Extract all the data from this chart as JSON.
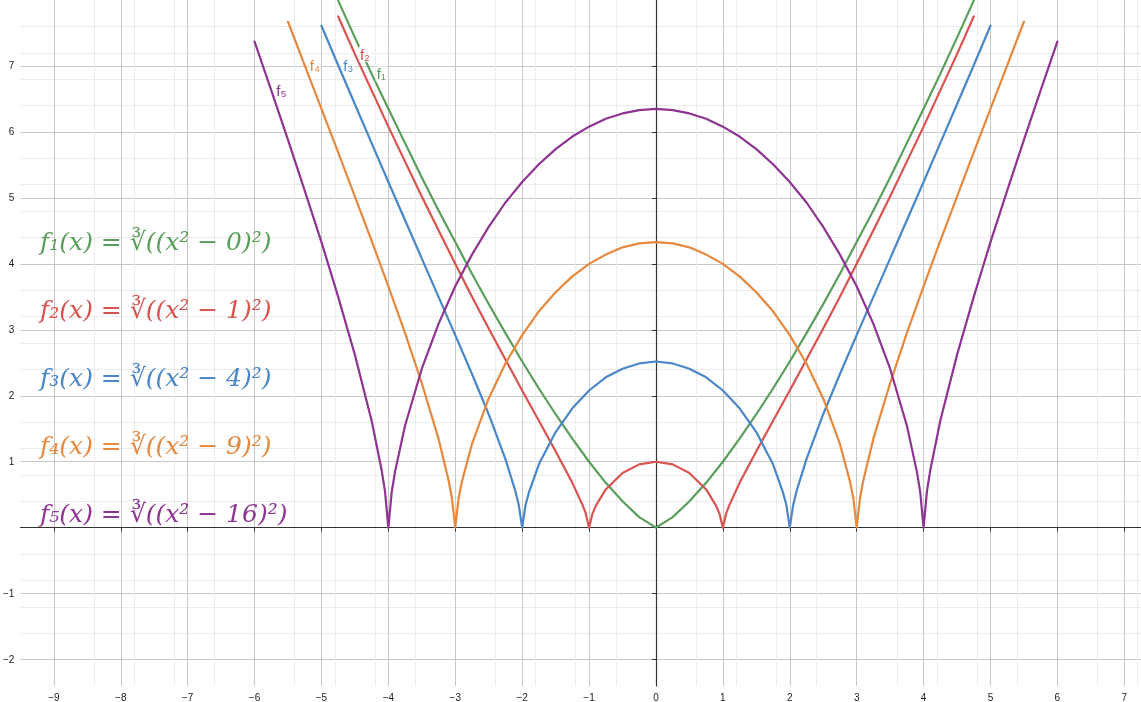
{
  "chart_data": {
    "type": "line",
    "xlim": [
      -9.5,
      7.25
    ],
    "ylim": [
      -2.4,
      8
    ],
    "xticks": [
      -9,
      -8,
      -7,
      -6,
      -5,
      -4,
      -3,
      -2,
      -1,
      0,
      1,
      2,
      3,
      4,
      5,
      6,
      7
    ],
    "yticks": [
      -2,
      -1,
      1,
      2,
      3,
      4,
      5,
      6,
      7
    ],
    "grid": true,
    "legend": false,
    "marker": "none",
    "line_style": "solid",
    "annotations": [
      "f₁(x) = ∛((x² − 0)²)",
      "f₂(x) = ∛((x² − 1)²)",
      "f₃(x) = ∛((x² − 4)²)",
      "f₄(x) = ∛((x² − 9)²)",
      "f₅(x) = ∛((x² − 16)²)"
    ],
    "series": [
      {
        "name": "f₁",
        "color": "#5b9e5b",
        "x": [
          -4.75,
          -4.5,
          -4.25,
          -4,
          -3.75,
          -3.5,
          -3.25,
          -3,
          -2.75,
          -2.5,
          -2.25,
          -2,
          -1.75,
          -1.5,
          -1.25,
          -1,
          -0.75,
          -0.5,
          -0.25,
          0,
          0.25,
          0.5,
          0.75,
          1,
          1.25,
          1.5,
          1.75,
          2,
          2.25,
          2.5,
          2.75,
          3,
          3.25,
          3.5,
          3.75,
          4,
          4.25,
          4.5,
          4.75
        ],
        "values": [
          7.99,
          7.43,
          6.88,
          6.35,
          5.83,
          5.31,
          4.81,
          4.33,
          3.85,
          3.39,
          2.95,
          2.52,
          2.11,
          1.72,
          1.35,
          1,
          0.68,
          0.4,
          0.16,
          0,
          0.16,
          0.4,
          0.68,
          1,
          1.35,
          1.72,
          2.11,
          2.52,
          2.95,
          3.39,
          3.85,
          4.33,
          4.81,
          5.31,
          5.83,
          6.35,
          6.88,
          7.43,
          7.99
        ]
      },
      {
        "name": "f₂",
        "color": "#d9534f",
        "x": [
          -4.75,
          -4.5,
          -4.25,
          -4,
          -3.75,
          -3.5,
          -3.25,
          -3,
          -2.75,
          -2.5,
          -2.25,
          -2,
          -1.75,
          -1.5,
          -1.25,
          -1.1,
          -1.05,
          -1,
          -0.95,
          -0.9,
          -0.75,
          -0.5,
          -0.25,
          0,
          0.25,
          0.5,
          0.75,
          0.9,
          0.95,
          1,
          1.05,
          1.1,
          1.25,
          1.5,
          1.75,
          2,
          2.25,
          2.5,
          2.75,
          3,
          3.25,
          3.5,
          3.75,
          4,
          4.25,
          4.5,
          4.75
        ],
        "values": [
          7.75,
          7.18,
          6.63,
          6.08,
          5.55,
          5.02,
          4.51,
          4,
          3.5,
          3.02,
          2.55,
          2.08,
          1.62,
          1.16,
          0.68,
          0.35,
          0.22,
          0,
          0.21,
          0.33,
          0.58,
          0.83,
          0.96,
          1,
          0.96,
          0.83,
          0.58,
          0.33,
          0.21,
          0,
          0.22,
          0.35,
          0.68,
          1.16,
          1.62,
          2.08,
          2.55,
          3.02,
          3.5,
          4,
          4.51,
          5.02,
          5.55,
          6.08,
          6.63,
          7.18,
          7.75
        ]
      },
      {
        "name": "f₃",
        "color": "#4a86c8",
        "x": [
          -5,
          -4.75,
          -4.5,
          -4.25,
          -4,
          -3.75,
          -3.5,
          -3.25,
          -3,
          -2.75,
          -2.5,
          -2.25,
          -2.1,
          -2.05,
          -2,
          -1.95,
          -1.9,
          -1.75,
          -1.5,
          -1.25,
          -1,
          -0.75,
          -0.5,
          -0.25,
          0,
          0.25,
          0.5,
          0.75,
          1,
          1.25,
          1.5,
          1.75,
          1.9,
          1.95,
          2,
          2.05,
          2.1,
          2.25,
          2.5,
          2.75,
          3,
          3.25,
          3.5,
          3.75,
          4,
          4.25,
          4.5,
          4.75,
          5
        ],
        "values": [
          7.61,
          7.01,
          6.42,
          5.83,
          5.24,
          4.66,
          4.08,
          3.5,
          2.92,
          2.33,
          1.72,
          1.04,
          0.55,
          0.34,
          0,
          0.34,
          0.53,
          0.96,
          1.45,
          1.81,
          2.08,
          2.28,
          2.41,
          2.49,
          2.52,
          2.49,
          2.41,
          2.28,
          2.08,
          1.81,
          1.45,
          0.96,
          0.53,
          0.34,
          0,
          0.34,
          0.55,
          1.04,
          1.72,
          2.33,
          2.92,
          3.5,
          4.08,
          4.66,
          5.24,
          5.83,
          6.42,
          7.01,
          7.61
        ]
      },
      {
        "name": "f₄",
        "color": "#e6893e",
        "x": [
          -5.5,
          -5.25,
          -5,
          -4.75,
          -4.5,
          -4.25,
          -4,
          -3.75,
          -3.5,
          -3.25,
          -3.1,
          -3.05,
          -3,
          -2.95,
          -2.9,
          -2.75,
          -2.5,
          -2.25,
          -2,
          -1.75,
          -1.5,
          -1.25,
          -1,
          -0.75,
          -0.5,
          -0.25,
          0,
          0.25,
          0.5,
          0.75,
          1,
          1.25,
          1.5,
          1.75,
          2,
          2.25,
          2.5,
          2.75,
          2.9,
          2.95,
          3,
          3.05,
          3.1,
          3.25,
          3.5,
          3.75,
          4,
          4.25,
          4.5,
          4.75,
          5,
          5.25,
          5.5
        ],
        "values": [
          7.67,
          7.01,
          6.35,
          5.69,
          5.02,
          4.35,
          3.66,
          2.95,
          2.19,
          1.35,
          0.72,
          0.45,
          0,
          0.45,
          0.7,
          1.27,
          1.96,
          2.49,
          2.92,
          3.28,
          3.57,
          3.81,
          4,
          4.14,
          4.25,
          4.31,
          4.33,
          4.31,
          4.25,
          4.14,
          4,
          3.81,
          3.57,
          3.28,
          2.92,
          2.49,
          1.96,
          1.27,
          0.7,
          0.45,
          0,
          0.45,
          0.72,
          1.35,
          2.19,
          2.95,
          3.66,
          4.35,
          5.02,
          5.69,
          6.35,
          7.01,
          7.67
        ]
      },
      {
        "name": "f₅",
        "color": "#8e3592",
        "x": [
          -6,
          -5.75,
          -5.5,
          -5.25,
          -5,
          -4.75,
          -4.5,
          -4.25,
          -4.1,
          -4.05,
          -4,
          -3.95,
          -3.9,
          -3.75,
          -3.5,
          -3.25,
          -3,
          -2.75,
          -2.5,
          -2.25,
          -2,
          -1.75,
          -1.5,
          -1.25,
          -1,
          -0.75,
          -0.5,
          -0.25,
          0,
          0.25,
          0.5,
          0.75,
          1,
          1.25,
          1.5,
          1.75,
          2,
          2.25,
          2.5,
          2.75,
          3,
          3.25,
          3.5,
          3.75,
          3.9,
          3.95,
          4,
          4.05,
          4.1,
          4.25,
          4.5,
          4.75,
          5,
          5.25,
          5.5,
          5.75,
          6
        ],
        "values": [
          7.37,
          6.63,
          5.88,
          5.11,
          4.33,
          3.5,
          2.62,
          1.62,
          0.87,
          0.55,
          0,
          0.54,
          0.85,
          1.55,
          2.41,
          3.09,
          3.66,
          4.14,
          4.56,
          4.93,
          5.24,
          5.51,
          5.74,
          5.93,
          6.08,
          6.2,
          6.28,
          6.33,
          6.35,
          6.33,
          6.28,
          6.2,
          6.08,
          5.93,
          5.74,
          5.51,
          5.24,
          4.93,
          4.56,
          4.14,
          3.66,
          3.09,
          2.41,
          1.55,
          0.85,
          0.54,
          0,
          0.55,
          0.87,
          1.62,
          2.62,
          3.5,
          4.33,
          5.11,
          5.88,
          6.63,
          7.37
        ]
      }
    ]
  }
}
